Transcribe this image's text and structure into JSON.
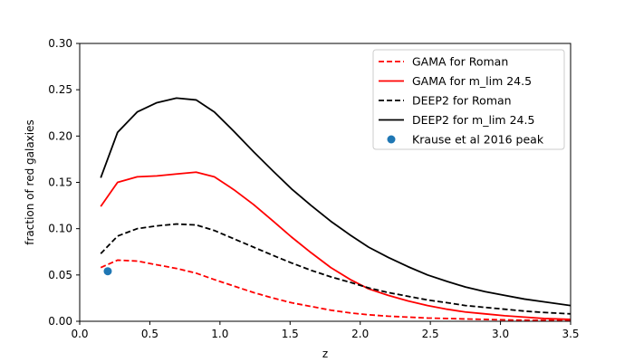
{
  "chart_data": {
    "type": "line",
    "xlabel": "z",
    "ylabel": "fraction of red galaxies",
    "xlim": [
      0.0,
      3.5
    ],
    "ylim": [
      0.0,
      0.3
    ],
    "xticks": [
      "0.0",
      "0.5",
      "1.0",
      "1.5",
      "2.0",
      "2.5",
      "3.0",
      "3.5"
    ],
    "yticks": [
      "0.00",
      "0.05",
      "0.10",
      "0.15",
      "0.20",
      "0.25",
      "0.30"
    ],
    "grid": false,
    "legend_position": "top-right",
    "series": [
      {
        "name": "GAMA for Roman",
        "color": "#ff0000",
        "style": "dashed",
        "x": [
          0.15,
          0.27,
          0.41,
          0.55,
          0.69,
          0.83,
          0.96,
          1.1,
          1.24,
          1.38,
          1.51,
          1.65,
          1.79,
          1.93,
          2.06,
          2.2,
          2.34,
          2.48,
          2.62,
          2.75,
          2.89,
          3.03,
          3.17,
          3.31,
          3.5
        ],
        "y": [
          0.058,
          0.066,
          0.065,
          0.061,
          0.057,
          0.052,
          0.045,
          0.038,
          0.031,
          0.025,
          0.02,
          0.016,
          0.012,
          0.009,
          0.007,
          0.0055,
          0.0045,
          0.0035,
          0.003,
          0.0025,
          0.002,
          0.0015,
          0.0012,
          0.001,
          0.0008
        ]
      },
      {
        "name": "GAMA for m_lim 24.5",
        "color": "#ff0000",
        "style": "solid",
        "x": [
          0.15,
          0.27,
          0.41,
          0.55,
          0.69,
          0.83,
          0.96,
          1.1,
          1.24,
          1.38,
          1.51,
          1.65,
          1.79,
          1.93,
          2.06,
          2.2,
          2.34,
          2.48,
          2.62,
          2.75,
          2.89,
          3.03,
          3.17,
          3.31,
          3.5
        ],
        "y": [
          0.124,
          0.15,
          0.156,
          0.157,
          0.159,
          0.161,
          0.156,
          0.142,
          0.126,
          0.108,
          0.091,
          0.074,
          0.058,
          0.045,
          0.035,
          0.028,
          0.022,
          0.017,
          0.013,
          0.01,
          0.008,
          0.006,
          0.0045,
          0.003,
          0.002
        ]
      },
      {
        "name": "DEEP2 for Roman",
        "color": "#000000",
        "style": "dashed",
        "x": [
          0.15,
          0.27,
          0.41,
          0.55,
          0.69,
          0.83,
          0.96,
          1.1,
          1.24,
          1.38,
          1.51,
          1.65,
          1.79,
          1.93,
          2.06,
          2.2,
          2.34,
          2.48,
          2.62,
          2.75,
          2.89,
          3.03,
          3.17,
          3.31,
          3.5
        ],
        "y": [
          0.073,
          0.092,
          0.1,
          0.103,
          0.105,
          0.104,
          0.098,
          0.089,
          0.08,
          0.071,
          0.063,
          0.055,
          0.048,
          0.042,
          0.036,
          0.031,
          0.027,
          0.023,
          0.02,
          0.017,
          0.015,
          0.013,
          0.011,
          0.0095,
          0.008
        ]
      },
      {
        "name": "DEEP2 for m_lim 24.5",
        "color": "#000000",
        "style": "solid",
        "x": [
          0.15,
          0.27,
          0.41,
          0.55,
          0.69,
          0.83,
          0.96,
          1.1,
          1.24,
          1.38,
          1.51,
          1.65,
          1.79,
          1.93,
          2.06,
          2.2,
          2.34,
          2.48,
          2.62,
          2.75,
          2.89,
          3.03,
          3.17,
          3.31,
          3.5
        ],
        "y": [
          0.155,
          0.204,
          0.226,
          0.236,
          0.241,
          0.239,
          0.226,
          0.205,
          0.183,
          0.162,
          0.143,
          0.125,
          0.108,
          0.093,
          0.08,
          0.069,
          0.059,
          0.05,
          0.043,
          0.037,
          0.032,
          0.028,
          0.024,
          0.021,
          0.017
        ]
      }
    ],
    "points": [
      {
        "name": "Krause et al 2016 peak",
        "color": "#1f77b4",
        "x": 0.2,
        "y": 0.054
      }
    ]
  }
}
